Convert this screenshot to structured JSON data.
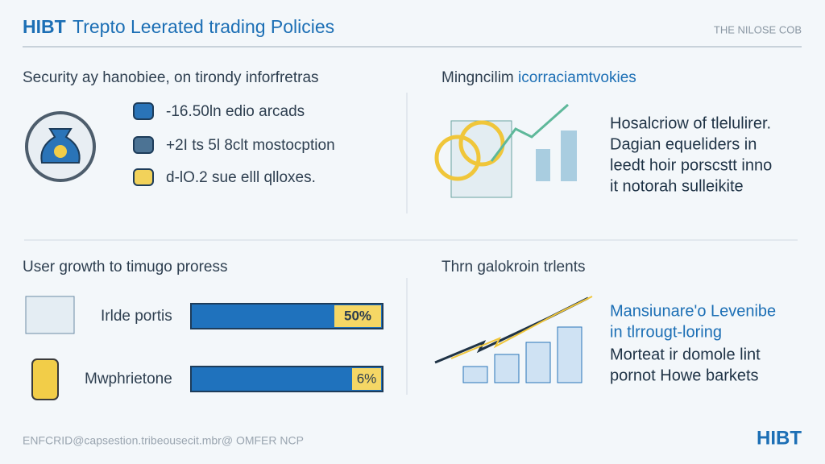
{
  "header": {
    "brand": "HIBT",
    "title": "Trepto Leerated trading Policies",
    "tag": "THE NILOSE COB"
  },
  "sections": [
    {
      "heading": "Security ay hanobiee, on tirondy inforfretras",
      "items": [
        "-16.50ln edio arcads",
        "+2I ts 5l 8clt mostocption",
        "d-lO.2 sue elll qlloxes."
      ]
    },
    {
      "heading": "Mingncilim",
      "heading_accent": "icorraciamtvokies",
      "lines": [
        "Hosalcriow of tlelulirer.",
        "Dagian equeliders in",
        "leedt hoir porscstt inno",
        "it notorah sulleikite"
      ]
    },
    {
      "heading": "User growth to timugo proress",
      "bars": [
        {
          "label": "Irlde portis",
          "badge": "50%"
        },
        {
          "label": "Mwphrietone",
          "badge": "6%"
        }
      ]
    },
    {
      "heading": "Thrn galokroin trlents",
      "accent_lines": [
        "Mansiunare'o Levenibe",
        "in tlrrougt-loring"
      ],
      "lines": [
        "Morteat ir domole lint",
        "pornot Howe barkets"
      ]
    }
  ],
  "footer": {
    "note": "ENFCRID@capsestion.tribeousecit.mbr@ OMFER NCP",
    "brand": "HIBT"
  }
}
